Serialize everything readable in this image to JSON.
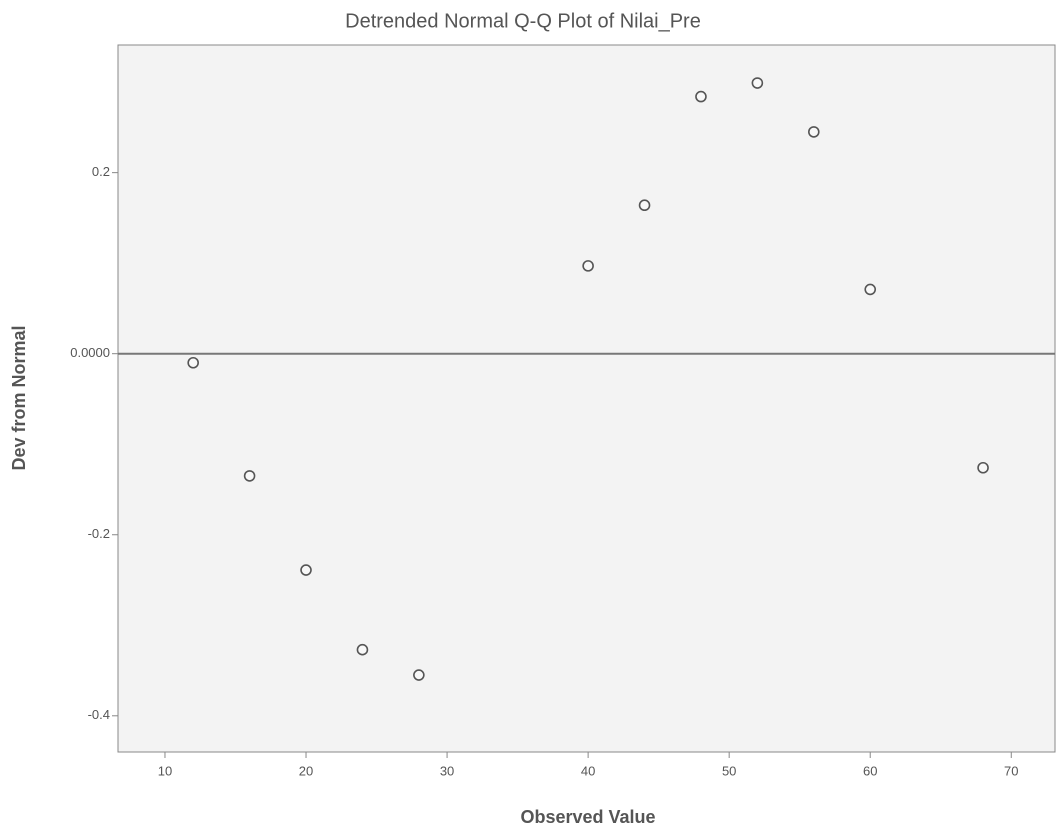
{
  "chart_data": {
    "type": "scatter",
    "title": "Detrended Normal Q-Q Plot of Nilai_Pre",
    "x_label": "Observed Value",
    "y_label": "Dev from Normal",
    "series": [
      {
        "color": "#555555",
        "x": [
          12,
          16,
          20,
          24,
          28,
          40,
          44,
          48,
          52,
          56,
          60,
          68
        ],
        "values": [
          -0.01,
          -0.135,
          -0.239,
          -0.327,
          -0.355,
          0.097,
          0.164,
          0.284,
          0.299,
          0.245,
          0.071,
          -0.126
        ]
      }
    ],
    "xlim": [
      6.67,
      73.1
    ],
    "xticks": [
      10,
      20,
      30,
      40,
      50,
      60,
      70
    ],
    "ylim": [
      -0.44,
      0.341
    ],
    "yticks": [
      -0.4,
      -0.2,
      {
        "value": 0,
        "label": "0.0000"
      },
      0.2
    ],
    "reference_line": 0
  }
}
